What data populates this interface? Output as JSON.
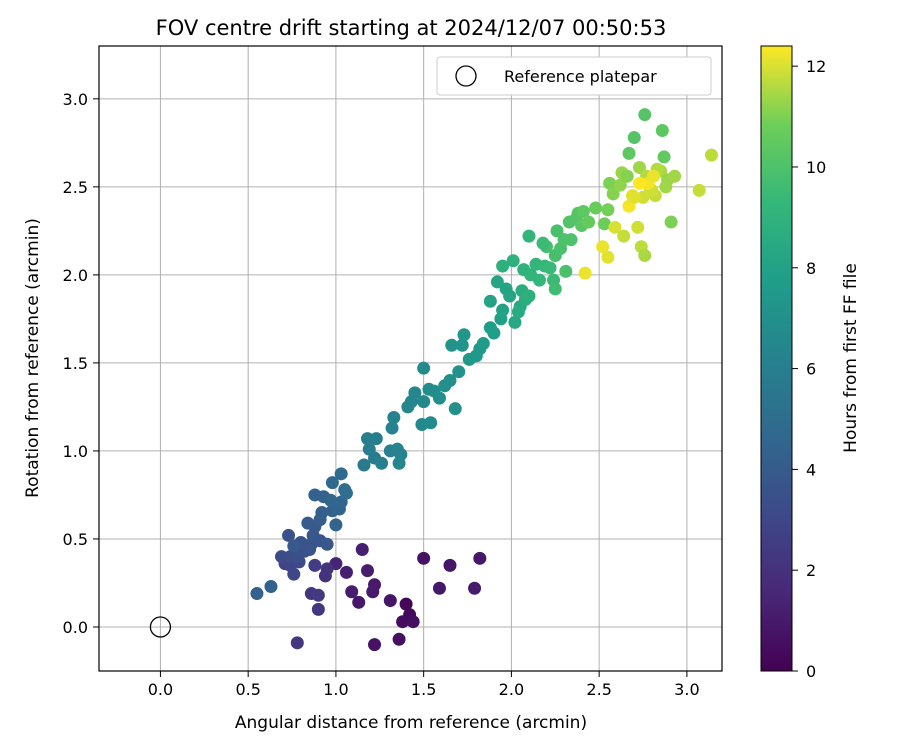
{
  "chart_data": {
    "type": "scatter",
    "title": "FOV centre drift starting at 2024/12/07 00:50:53",
    "xlabel": "Angular distance from reference (arcmin)",
    "ylabel": "Rotation from reference (arcmin)",
    "xlim": [
      -0.35,
      3.2
    ],
    "ylim": [
      -0.25,
      3.3
    ],
    "xticks": [
      "0.0",
      "0.5",
      "1.0",
      "1.5",
      "2.0",
      "2.5",
      "3.0"
    ],
    "yticks": [
      "0.0",
      "0.5",
      "1.0",
      "1.5",
      "2.0",
      "2.5",
      "3.0"
    ],
    "grid": true,
    "legend": {
      "placement": "top-right",
      "entries": [
        "Reference platepar"
      ]
    },
    "reference_point": {
      "x": 0.0,
      "y": 0.0
    },
    "colorbar": {
      "label": "Hours from first FF file",
      "range": [
        0,
        12.4
      ],
      "ticks": [
        "0",
        "2",
        "4",
        "6",
        "8",
        "10",
        "12"
      ],
      "colormap": "viridis"
    },
    "series": [
      {
        "points": [
          [
            1.4,
            0.13
          ],
          [
            1.42,
            0.07
          ],
          [
            1.38,
            0.03
          ],
          [
            1.44,
            0.03
          ],
          [
            1.36,
            -0.07
          ],
          [
            1.22,
            -0.1
          ],
          [
            1.31,
            0.15
          ],
          [
            1.13,
            0.14
          ],
          [
            1.21,
            0.2
          ],
          [
            1.22,
            0.24
          ],
          [
            1.18,
            0.32
          ],
          [
            1.09,
            0.2
          ],
          [
            1.15,
            0.44
          ],
          [
            1.06,
            0.31
          ],
          [
            1.65,
            0.35
          ],
          [
            1.59,
            0.22
          ],
          [
            1.5,
            0.39
          ],
          [
            1.79,
            0.22
          ],
          [
            1.82,
            0.39
          ],
          [
            1.0,
            0.36
          ],
          [
            0.78,
            -0.09
          ],
          [
            0.94,
            0.29
          ],
          [
            0.95,
            0.33
          ],
          [
            0.86,
            0.19
          ],
          [
            0.9,
            0.1
          ],
          [
            0.9,
            0.18
          ],
          [
            0.88,
            0.35
          ],
          [
            0.81,
            0.43
          ],
          [
            0.76,
            0.39
          ],
          [
            0.71,
            0.36
          ],
          [
            0.74,
            0.35
          ],
          [
            0.76,
            0.3
          ],
          [
            0.79,
            0.37
          ],
          [
            0.69,
            0.4
          ],
          [
            0.74,
            0.4
          ],
          [
            0.78,
            0.4
          ],
          [
            0.82,
            0.43
          ],
          [
            0.85,
            0.44
          ],
          [
            0.86,
            0.47
          ],
          [
            0.87,
            0.52
          ],
          [
            0.8,
            0.48
          ],
          [
            0.73,
            0.52
          ],
          [
            0.76,
            0.46
          ],
          [
            0.91,
            0.49
          ],
          [
            0.95,
            0.47
          ],
          [
            0.88,
            0.57
          ],
          [
            0.84,
            0.59
          ],
          [
            0.91,
            0.61
          ],
          [
            0.92,
            0.65
          ],
          [
            0.88,
            0.75
          ],
          [
            0.93,
            0.74
          ],
          [
            0.98,
            0.66
          ],
          [
            1.0,
            0.58
          ],
          [
            1.02,
            0.67
          ],
          [
            0.97,
            0.72
          ],
          [
            1.03,
            0.71
          ],
          [
            0.98,
            0.82
          ],
          [
            1.03,
            0.87
          ],
          [
            1.05,
            0.78
          ],
          [
            1.06,
            0.76
          ],
          [
            0.63,
            0.23
          ],
          [
            0.55,
            0.19
          ],
          [
            1.16,
            0.92
          ],
          [
            1.22,
            0.96
          ],
          [
            1.19,
            1.01
          ],
          [
            1.18,
            1.07
          ],
          [
            1.23,
            1.07
          ],
          [
            1.26,
            0.93
          ],
          [
            1.31,
            1.0
          ],
          [
            1.32,
            1.13
          ],
          [
            1.33,
            1.19
          ],
          [
            1.35,
            1.01
          ],
          [
            1.37,
            0.98
          ],
          [
            1.36,
            0.93
          ],
          [
            1.41,
            1.25
          ],
          [
            1.43,
            1.28
          ],
          [
            1.45,
            1.33
          ],
          [
            1.5,
            1.28
          ],
          [
            1.49,
            1.15
          ],
          [
            1.54,
            1.16
          ],
          [
            1.5,
            1.47
          ],
          [
            1.53,
            1.35
          ],
          [
            1.56,
            1.34
          ],
          [
            1.59,
            1.3
          ],
          [
            1.62,
            1.37
          ],
          [
            1.65,
            1.4
          ],
          [
            1.68,
            1.24
          ],
          [
            1.7,
            1.45
          ],
          [
            1.66,
            1.6
          ],
          [
            1.72,
            1.6
          ],
          [
            1.73,
            1.66
          ],
          [
            1.76,
            1.52
          ],
          [
            1.8,
            1.54
          ],
          [
            1.82,
            1.58
          ],
          [
            1.84,
            1.61
          ],
          [
            1.88,
            1.7
          ],
          [
            1.9,
            1.67
          ],
          [
            1.94,
            1.75
          ],
          [
            1.95,
            1.8
          ],
          [
            1.97,
            1.92
          ],
          [
            1.92,
            1.96
          ],
          [
            1.99,
            1.88
          ],
          [
            2.02,
            1.73
          ],
          [
            2.05,
            1.82
          ],
          [
            2.04,
            1.79
          ],
          [
            2.06,
            1.91
          ],
          [
            2.08,
            1.86
          ],
          [
            2.1,
            1.88
          ],
          [
            2.01,
            2.08
          ],
          [
            2.07,
            2.03
          ],
          [
            2.11,
            2.0
          ],
          [
            2.14,
            2.06
          ],
          [
            2.16,
            1.97
          ],
          [
            2.19,
            2.05
          ],
          [
            2.22,
            2.04
          ],
          [
            2.24,
            1.97
          ],
          [
            2.25,
            1.92
          ],
          [
            2.2,
            2.16
          ],
          [
            2.25,
            2.11
          ],
          [
            2.28,
            2.15
          ],
          [
            2.31,
            2.02
          ],
          [
            2.3,
            2.2
          ],
          [
            2.33,
            2.3
          ],
          [
            2.37,
            2.32
          ],
          [
            2.4,
            2.28
          ],
          [
            1.88,
            1.85
          ],
          [
            1.95,
            2.05
          ],
          [
            2.1,
            2.22
          ],
          [
            2.18,
            2.18
          ],
          [
            2.26,
            2.25
          ],
          [
            2.34,
            2.2
          ],
          [
            2.38,
            2.35
          ],
          [
            2.41,
            2.36
          ],
          [
            2.44,
            2.3
          ],
          [
            2.48,
            2.38
          ],
          [
            2.53,
            2.29
          ],
          [
            2.55,
            2.37
          ],
          [
            2.56,
            2.52
          ],
          [
            2.58,
            2.46
          ],
          [
            2.62,
            2.51
          ],
          [
            2.63,
            2.58
          ],
          [
            2.66,
            2.56
          ],
          [
            2.67,
            2.69
          ],
          [
            2.7,
            2.78
          ],
          [
            2.73,
            2.61
          ],
          [
            2.75,
            2.44
          ],
          [
            2.77,
            2.56
          ],
          [
            2.79,
            2.49
          ],
          [
            2.82,
            2.45
          ],
          [
            2.85,
            2.59
          ],
          [
            2.87,
            2.67
          ],
          [
            2.89,
            2.54
          ],
          [
            2.91,
            2.3
          ],
          [
            2.93,
            2.56
          ],
          [
            2.76,
            2.91
          ],
          [
            2.86,
            2.82
          ],
          [
            2.64,
            2.22
          ],
          [
            2.72,
            2.27
          ],
          [
            2.74,
            2.16
          ],
          [
            2.76,
            2.11
          ],
          [
            2.59,
            2.27
          ],
          [
            2.55,
            2.1
          ],
          [
            2.42,
            2.01
          ],
          [
            2.52,
            2.16
          ],
          [
            2.67,
            2.39
          ],
          [
            2.7,
            2.44
          ],
          [
            2.8,
            2.48
          ],
          [
            2.83,
            2.6
          ],
          [
            2.88,
            2.5
          ],
          [
            3.07,
            2.48
          ],
          [
            3.14,
            2.68
          ],
          [
            2.78,
            2.52
          ],
          [
            2.81,
            2.56
          ],
          [
            2.69,
            2.45
          ],
          [
            2.73,
            2.52
          ]
        ],
        "hours": [
          0.2,
          0.3,
          0.4,
          0.5,
          0.6,
          0.7,
          0.8,
          0.9,
          1.0,
          1.0,
          1.1,
          1.1,
          1.2,
          1.2,
          0.8,
          0.9,
          0.7,
          1.0,
          0.9,
          1.4,
          2.2,
          2.0,
          2.1,
          2.2,
          2.3,
          2.4,
          2.5,
          2.6,
          2.7,
          2.8,
          2.9,
          3.0,
          3.1,
          3.2,
          3.3,
          3.4,
          3.5,
          3.6,
          3.7,
          3.8,
          3.6,
          3.5,
          3.9,
          3.7,
          3.8,
          3.9,
          4.0,
          4.1,
          4.2,
          4.3,
          4.3,
          4.4,
          4.5,
          4.5,
          4.6,
          4.6,
          4.7,
          4.8,
          4.9,
          5.0,
          4.4,
          4.3,
          5.7,
          5.8,
          5.9,
          6.0,
          6.0,
          6.1,
          6.1,
          6.2,
          6.2,
          6.3,
          6.3,
          6.4,
          6.4,
          6.5,
          6.5,
          6.6,
          6.6,
          6.7,
          6.7,
          6.8,
          6.8,
          6.9,
          6.9,
          7.0,
          7.0,
          7.1,
          7.1,
          7.2,
          7.3,
          7.4,
          7.5,
          7.5,
          7.6,
          7.7,
          7.8,
          7.9,
          8.0,
          8.1,
          8.2,
          8.2,
          8.3,
          8.4,
          8.5,
          8.6,
          8.7,
          8.8,
          8.9,
          9.0,
          9.1,
          9.1,
          9.2,
          9.3,
          9.4,
          9.5,
          9.6,
          9.7,
          9.8,
          9.9,
          9.9,
          10.0,
          10.1,
          10.2,
          10.3,
          8.1,
          8.8,
          9.1,
          9.5,
          9.9,
          10.0,
          10.2,
          10.4,
          10.6,
          10.7,
          10.8,
          10.9,
          11.0,
          11.1,
          11.2,
          11.3,
          11.1,
          10.4,
          10.2,
          11.4,
          11.9,
          11.6,
          12.0,
          11.8,
          11.5,
          10.5,
          11.3,
          11.0,
          11.4,
          10.2,
          10.4,
          11.8,
          11.9,
          11.7,
          11.5,
          12.0,
          12.1,
          12.2,
          12.2,
          12.3,
          12.1,
          11.9,
          11.6,
          11.4,
          11.8,
          11.7,
          12.3,
          12.2,
          12.1,
          12.4
        ]
      }
    ]
  }
}
